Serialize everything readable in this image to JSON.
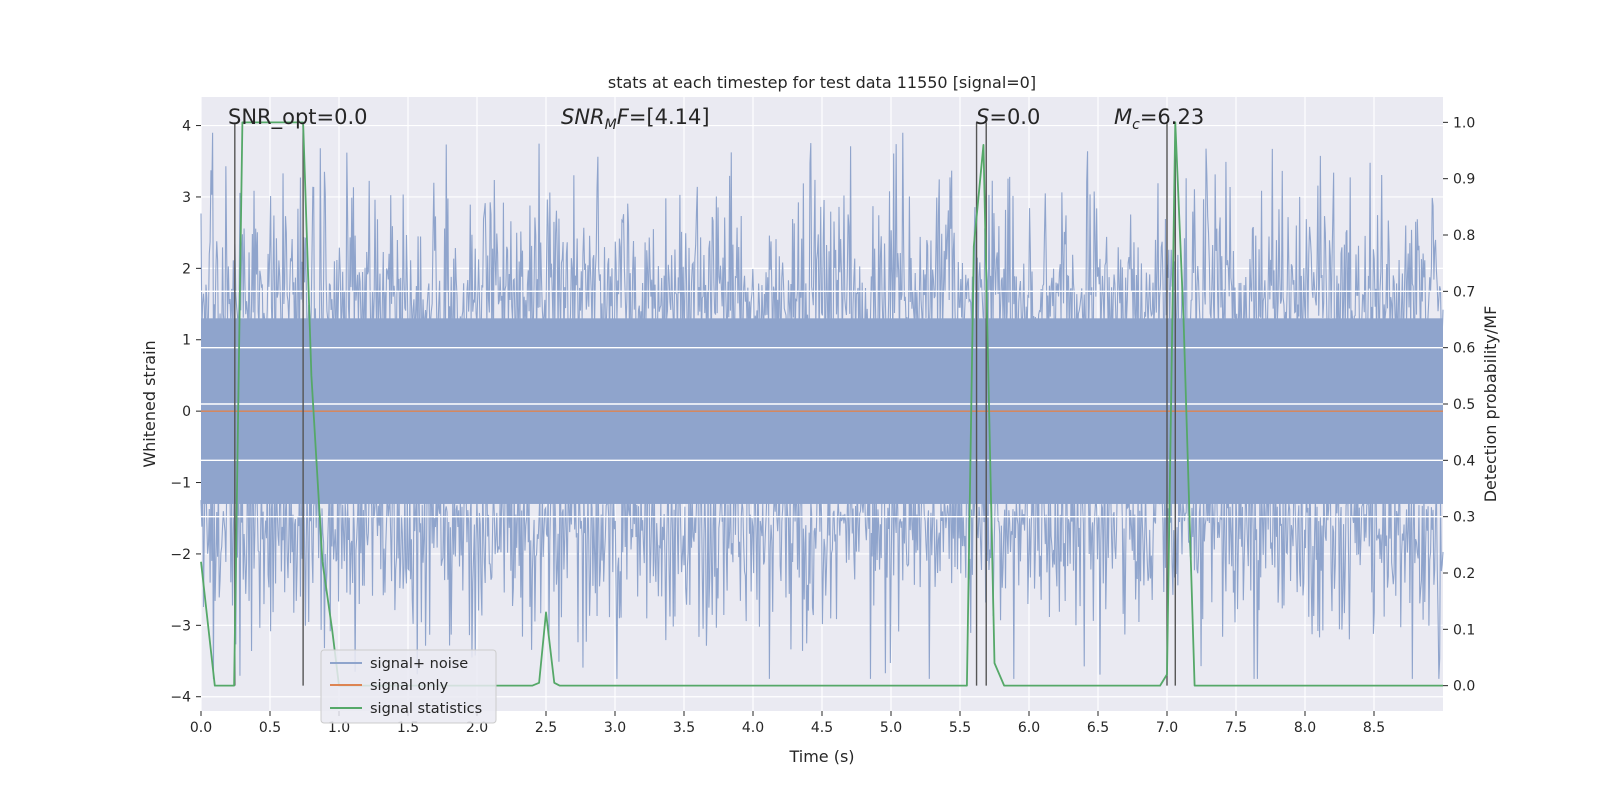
{
  "chart_data": {
    "type": "line",
    "title": "stats at each timestep for test data 11550 [signal=0]",
    "xlabel": "Time (s)",
    "ylabel_left": "Whitened strain",
    "ylabel_right": "Detection probability/MF",
    "xlim": [
      0.0,
      9.0
    ],
    "ylim_left": [
      -4.2,
      4.4
    ],
    "ylim_right": [
      -0.045,
      1.045
    ],
    "x_ticks": [
      0.0,
      0.5,
      1.0,
      1.5,
      2.0,
      2.5,
      3.0,
      3.5,
      4.0,
      4.5,
      5.0,
      5.5,
      6.0,
      6.5,
      7.0,
      7.5,
      8.0,
      8.5
    ],
    "x_tick_labels": [
      "0.0",
      "0.5",
      "1.0",
      "1.5",
      "2.0",
      "2.5",
      "3.0",
      "3.5",
      "4.0",
      "4.5",
      "5.0",
      "5.5",
      "6.0",
      "6.5",
      "7.0",
      "7.5",
      "8.0",
      "8.5"
    ],
    "y_left_ticks": [
      -4,
      -3,
      -2,
      -1,
      0,
      1,
      2,
      3,
      4
    ],
    "y_left_tick_labels": [
      "−4",
      "−3",
      "−2",
      "−1",
      "0",
      "1",
      "2",
      "3",
      "4"
    ],
    "y_right_ticks": [
      0.0,
      0.1,
      0.2,
      0.3,
      0.4,
      0.5,
      0.6,
      0.7,
      0.8,
      0.9,
      1.0
    ],
    "y_right_tick_labels": [
      "0.0",
      "0.1",
      "0.2",
      "0.3",
      "0.4",
      "0.5",
      "0.6",
      "0.7",
      "0.8",
      "0.9",
      "1.0"
    ],
    "grid": true,
    "legend_position": "lower-left",
    "legend": [
      {
        "label": "signal+ noise",
        "color": "#8fa4cc"
      },
      {
        "label": "signal only",
        "color": "#dd8452"
      },
      {
        "label": "signal statistics",
        "color": "#55a868"
      }
    ],
    "annotations": [
      {
        "name": "snr-opt",
        "text": "SNR_opt=0.0",
        "x": 0.2
      },
      {
        "name": "snr-mf",
        "text": "SNRMF=[4.14]",
        "x": 2.6
      },
      {
        "name": "s-value",
        "text": "S=0.0",
        "x": 5.6
      },
      {
        "name": "chirp-mass",
        "text": "Mc=6.23",
        "x": 6.6
      }
    ],
    "series": [
      {
        "name": "signal+ noise",
        "axis": "left",
        "color": "#8fa4cc",
        "description": "whitened noise, roughly gaussian with sigma ~1.0 and excursions to about +/-3.8",
        "sigma": 1.0
      },
      {
        "name": "signal only",
        "axis": "left",
        "color": "#dd8452",
        "x": [
          0.0,
          9.0
        ],
        "y": [
          0.0,
          0.0
        ]
      },
      {
        "name": "signal statistics",
        "axis": "right",
        "color": "#55a868",
        "x": [
          0.0,
          0.05,
          0.1,
          0.24,
          0.3,
          0.74,
          0.8,
          0.88,
          0.95,
          1.0,
          2.4,
          2.45,
          2.5,
          2.56,
          2.6,
          5.55,
          5.6,
          5.67,
          5.75,
          5.82,
          6.95,
          7.0,
          7.06,
          7.12,
          7.2,
          9.0
        ],
        "y": [
          0.22,
          0.11,
          0.0,
          0.0,
          1.0,
          1.0,
          0.55,
          0.22,
          0.1,
          0.0,
          0.0,
          0.005,
          0.13,
          0.005,
          0.0,
          0.0,
          0.78,
          0.96,
          0.04,
          0.0,
          0.0,
          0.02,
          1.0,
          0.65,
          0.0,
          0.0
        ]
      }
    ],
    "vertical_lines": {
      "color": "#555555",
      "axis": "right",
      "lines": [
        {
          "x": 0.245,
          "y0": 0.0,
          "y1": 1.0
        },
        {
          "x": 0.74,
          "y0": 0.0,
          "y1": 1.0
        },
        {
          "x": 5.62,
          "y0": 0.0,
          "y1": 1.0
        },
        {
          "x": 5.69,
          "y0": 0.0,
          "y1": 1.0
        },
        {
          "x": 7.0,
          "y0": 0.0,
          "y1": 1.0
        },
        {
          "x": 7.06,
          "y0": 0.0,
          "y1": 1.0
        }
      ]
    },
    "horizontal_lines": {
      "color": "#ffffff",
      "axis": "right",
      "values": [
        0.7,
        0.6,
        0.5,
        0.4,
        0.3
      ]
    }
  }
}
